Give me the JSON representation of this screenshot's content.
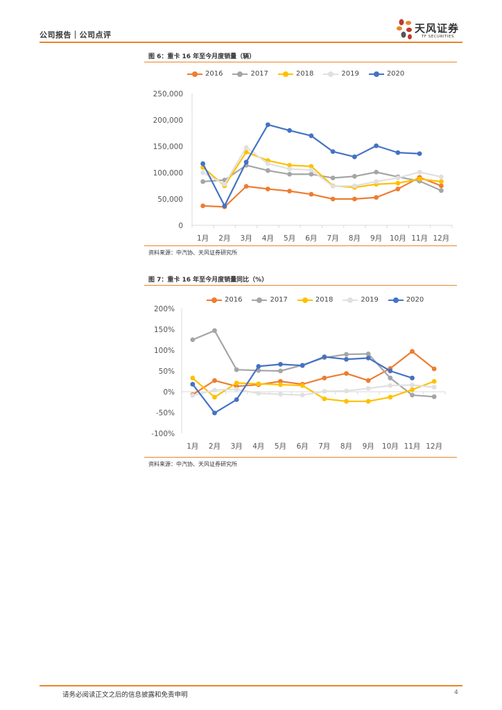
{
  "header": {
    "breadcrumb": "公司报告｜公司点评"
  },
  "logo": {
    "name_cn": "天风证券",
    "name_en": "TF SECURITIES"
  },
  "colors": {
    "accent": "#e8852a",
    "s2016": "#ed7d31",
    "s2017": "#a5a5a5",
    "s2018": "#ffc000",
    "s2019": "#e0e0e0",
    "s2020": "#4472c4",
    "axis": "#d9d9d9"
  },
  "figures": [
    {
      "title": "图 6：重卡 16 年至今月度销量（辆）",
      "source": "资料来源：中汽协、天风证券研究所"
    },
    {
      "title": "图 7：重卡 16 年至今月度销量同比（%）",
      "source": "资料来源：中汽协、天风证券研究所"
    }
  ],
  "chart_data": [
    {
      "type": "line",
      "title": "重卡 16 年至今月度销量（辆）",
      "categories": [
        "1月",
        "2月",
        "3月",
        "4月",
        "5月",
        "6月",
        "7月",
        "8月",
        "9月",
        "10月",
        "11月",
        "12月"
      ],
      "ylim": [
        0,
        250000
      ],
      "yticks": [
        0,
        50000,
        100000,
        150000,
        200000,
        250000
      ],
      "ytick_labels": [
        "0",
        "50,000",
        "100,000",
        "150,000",
        "200,000",
        "250,000"
      ],
      "legend": "top",
      "series": [
        {
          "name": "2016",
          "values": [
            37000,
            35000,
            74000,
            69000,
            65000,
            59000,
            50000,
            50000,
            53000,
            69000,
            91000,
            75000
          ]
        },
        {
          "name": "2017",
          "values": [
            83000,
            86000,
            114000,
            104000,
            97000,
            97000,
            90000,
            93000,
            101000,
            92000,
            84000,
            66000
          ]
        },
        {
          "name": "2018",
          "values": [
            110000,
            75000,
            139000,
            123000,
            114000,
            112000,
            75000,
            72000,
            78000,
            80000,
            88000,
            83000
          ]
        },
        {
          "name": "2019",
          "values": [
            100000,
            78000,
            148000,
            117000,
            107000,
            105000,
            74000,
            75000,
            83000,
            90000,
            101000,
            92000
          ]
        },
        {
          "name": "2020",
          "values": [
            117000,
            37000,
            120000,
            191000,
            180000,
            170000,
            140000,
            130000,
            151000,
            138000,
            136000,
            null
          ]
        }
      ]
    },
    {
      "type": "line",
      "title": "重卡 16 年至今月度销量同比（%）",
      "categories": [
        "1月",
        "2月",
        "3月",
        "4月",
        "5月",
        "6月",
        "7月",
        "8月",
        "9月",
        "10月",
        "11月",
        "12月"
      ],
      "ylim": [
        -100,
        200
      ],
      "yticks": [
        -100,
        -50,
        0,
        50,
        100,
        150,
        200
      ],
      "ytick_labels": [
        "-100%",
        "-50%",
        "0%",
        "50%",
        "100%",
        "150%",
        "200%"
      ],
      "legend": "top",
      "series": [
        {
          "name": "2016",
          "values": [
            -7,
            27,
            13,
            17,
            25,
            18,
            33,
            44,
            27,
            56,
            97,
            55
          ]
        },
        {
          "name": "2017",
          "values": [
            125,
            147,
            53,
            51,
            50,
            64,
            82,
            90,
            91,
            33,
            -8,
            -12
          ]
        },
        {
          "name": "2018",
          "values": [
            33,
            -13,
            21,
            19,
            17,
            15,
            -17,
            -23,
            -23,
            -13,
            5,
            25
          ]
        },
        {
          "name": "2019",
          "values": [
            -9,
            4,
            6,
            -4,
            -6,
            -8,
            1,
            2,
            8,
            15,
            16,
            11
          ]
        },
        {
          "name": "2020",
          "values": [
            18,
            -51,
            -19,
            61,
            66,
            63,
            84,
            78,
            81,
            50,
            33,
            null
          ]
        }
      ]
    }
  ],
  "footer": {
    "disclaimer": "请务必阅读正文之后的信息披露和免责申明",
    "page": "4"
  }
}
